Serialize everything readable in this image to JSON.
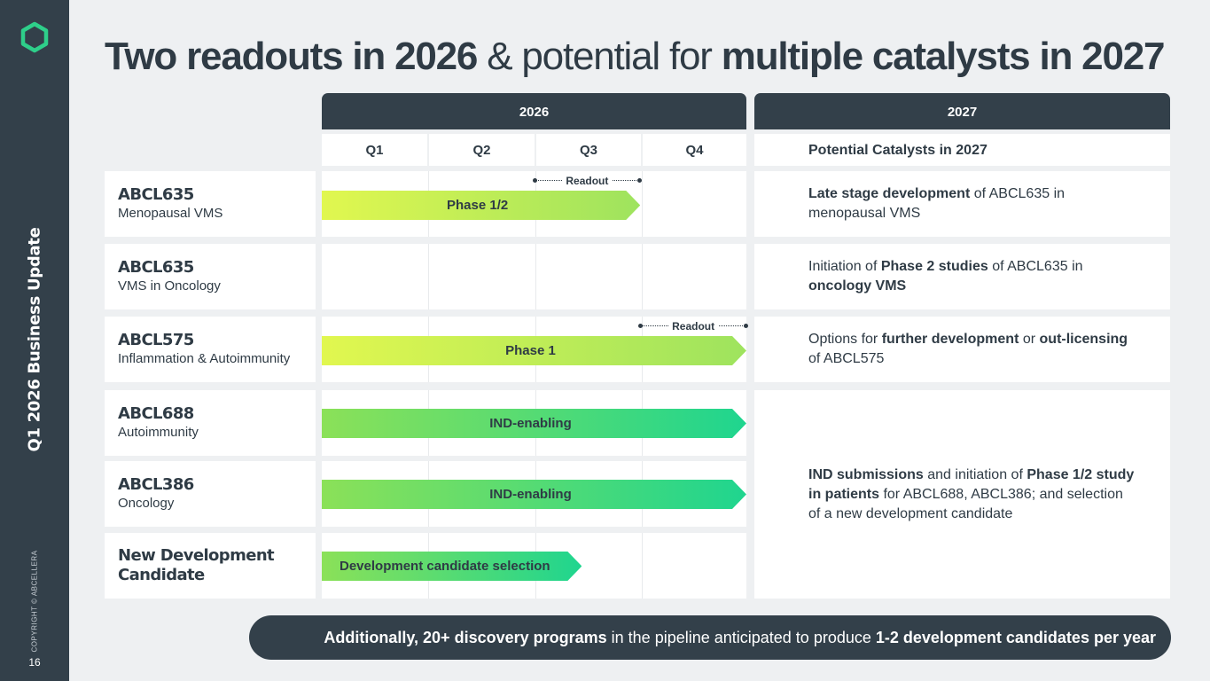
{
  "sidebar": {
    "title": "Q1 2026 Business Update",
    "copyright": "COPYRIGHT © ABCELLERA",
    "page_number": "16",
    "logo_icon": "hexagon-logo-icon",
    "logo_color": "#2ecf8a"
  },
  "title": {
    "part1": "Two readouts in 2026",
    "part2": " & potential for ",
    "part3": "multiple catalysts in 2027"
  },
  "timeline": {
    "year_2026": "2026",
    "year_2027": "2027",
    "quarters": [
      "Q1",
      "Q2",
      "Q3",
      "Q4"
    ],
    "catalyst_header": "Potential Catalysts in 2027"
  },
  "rows": [
    {
      "program": "ABCL635",
      "indication": "Menopausal VMS",
      "bar": {
        "label": "Phase 1/2",
        "start_quarter": 1,
        "end_quarter": 3,
        "color_start": "#e1f74f",
        "color_end": "#9ee35e"
      },
      "readout": {
        "label": "Readout",
        "quarter": 3
      }
    },
    {
      "program": "ABCL635",
      "indication": "VMS in Oncology"
    },
    {
      "program": "ABCL575",
      "indication": "Inflammation & Autoimmunity",
      "bar": {
        "label": "Phase 1",
        "start_quarter": 1,
        "end_quarter": 4,
        "color_start": "#e1f74f",
        "color_end": "#9ee35e"
      },
      "readout": {
        "label": "Readout",
        "quarter": 4
      }
    },
    {
      "program": "ABCL688",
      "indication": "Autoimmunity",
      "bar": {
        "label": "IND-enabling",
        "start_quarter": 1,
        "end_quarter": 4,
        "color_start": "#8be158",
        "color_end": "#1fd58f"
      }
    },
    {
      "program": "ABCL386",
      "indication": "Oncology",
      "bar": {
        "label": "IND-enabling",
        "start_quarter": 1,
        "end_quarter": 4,
        "color_start": "#8be158",
        "color_end": "#1fd58f"
      }
    },
    {
      "program": "New Development",
      "program_line2": "Candidate",
      "bar": {
        "label": "Development candidate selection",
        "start_quarter": 1,
        "end_quarter": 2.45,
        "color_start": "#8be158",
        "color_end": "#1fd58f"
      }
    }
  ],
  "catalysts": [
    {
      "parts": [
        {
          "t": "Late stage development",
          "b": true
        },
        {
          "t": " of ABCL635 in menopausal VMS",
          "b": false
        }
      ]
    },
    {
      "parts": [
        {
          "t": "Initiation of ",
          "b": false
        },
        {
          "t": "Phase 2 studies",
          "b": true
        },
        {
          "t": " of ABCL635 in ",
          "b": false
        },
        {
          "t": "oncology VMS",
          "b": true
        }
      ]
    },
    {
      "parts": [
        {
          "t": "Options for ",
          "b": false
        },
        {
          "t": "further development",
          "b": true
        },
        {
          "t": " or ",
          "b": false
        },
        {
          "t": "out-licensing",
          "b": true
        },
        {
          "t": " of ABCL575",
          "b": false
        }
      ]
    },
    {
      "parts": [
        {
          "t": "IND submissions",
          "b": true
        },
        {
          "t": " and initiation of ",
          "b": false
        },
        {
          "t": "Phase 1/2 study in patients",
          "b": true
        },
        {
          "t": " for ABCL688, ABCL386; and selection of a new development candidate",
          "b": false
        }
      ]
    }
  ],
  "banner": {
    "part1": "Additionally, 20+ discovery programs",
    "part2": " in the pipeline anticipated to produce ",
    "part3": "1-2 development candidates per year"
  }
}
